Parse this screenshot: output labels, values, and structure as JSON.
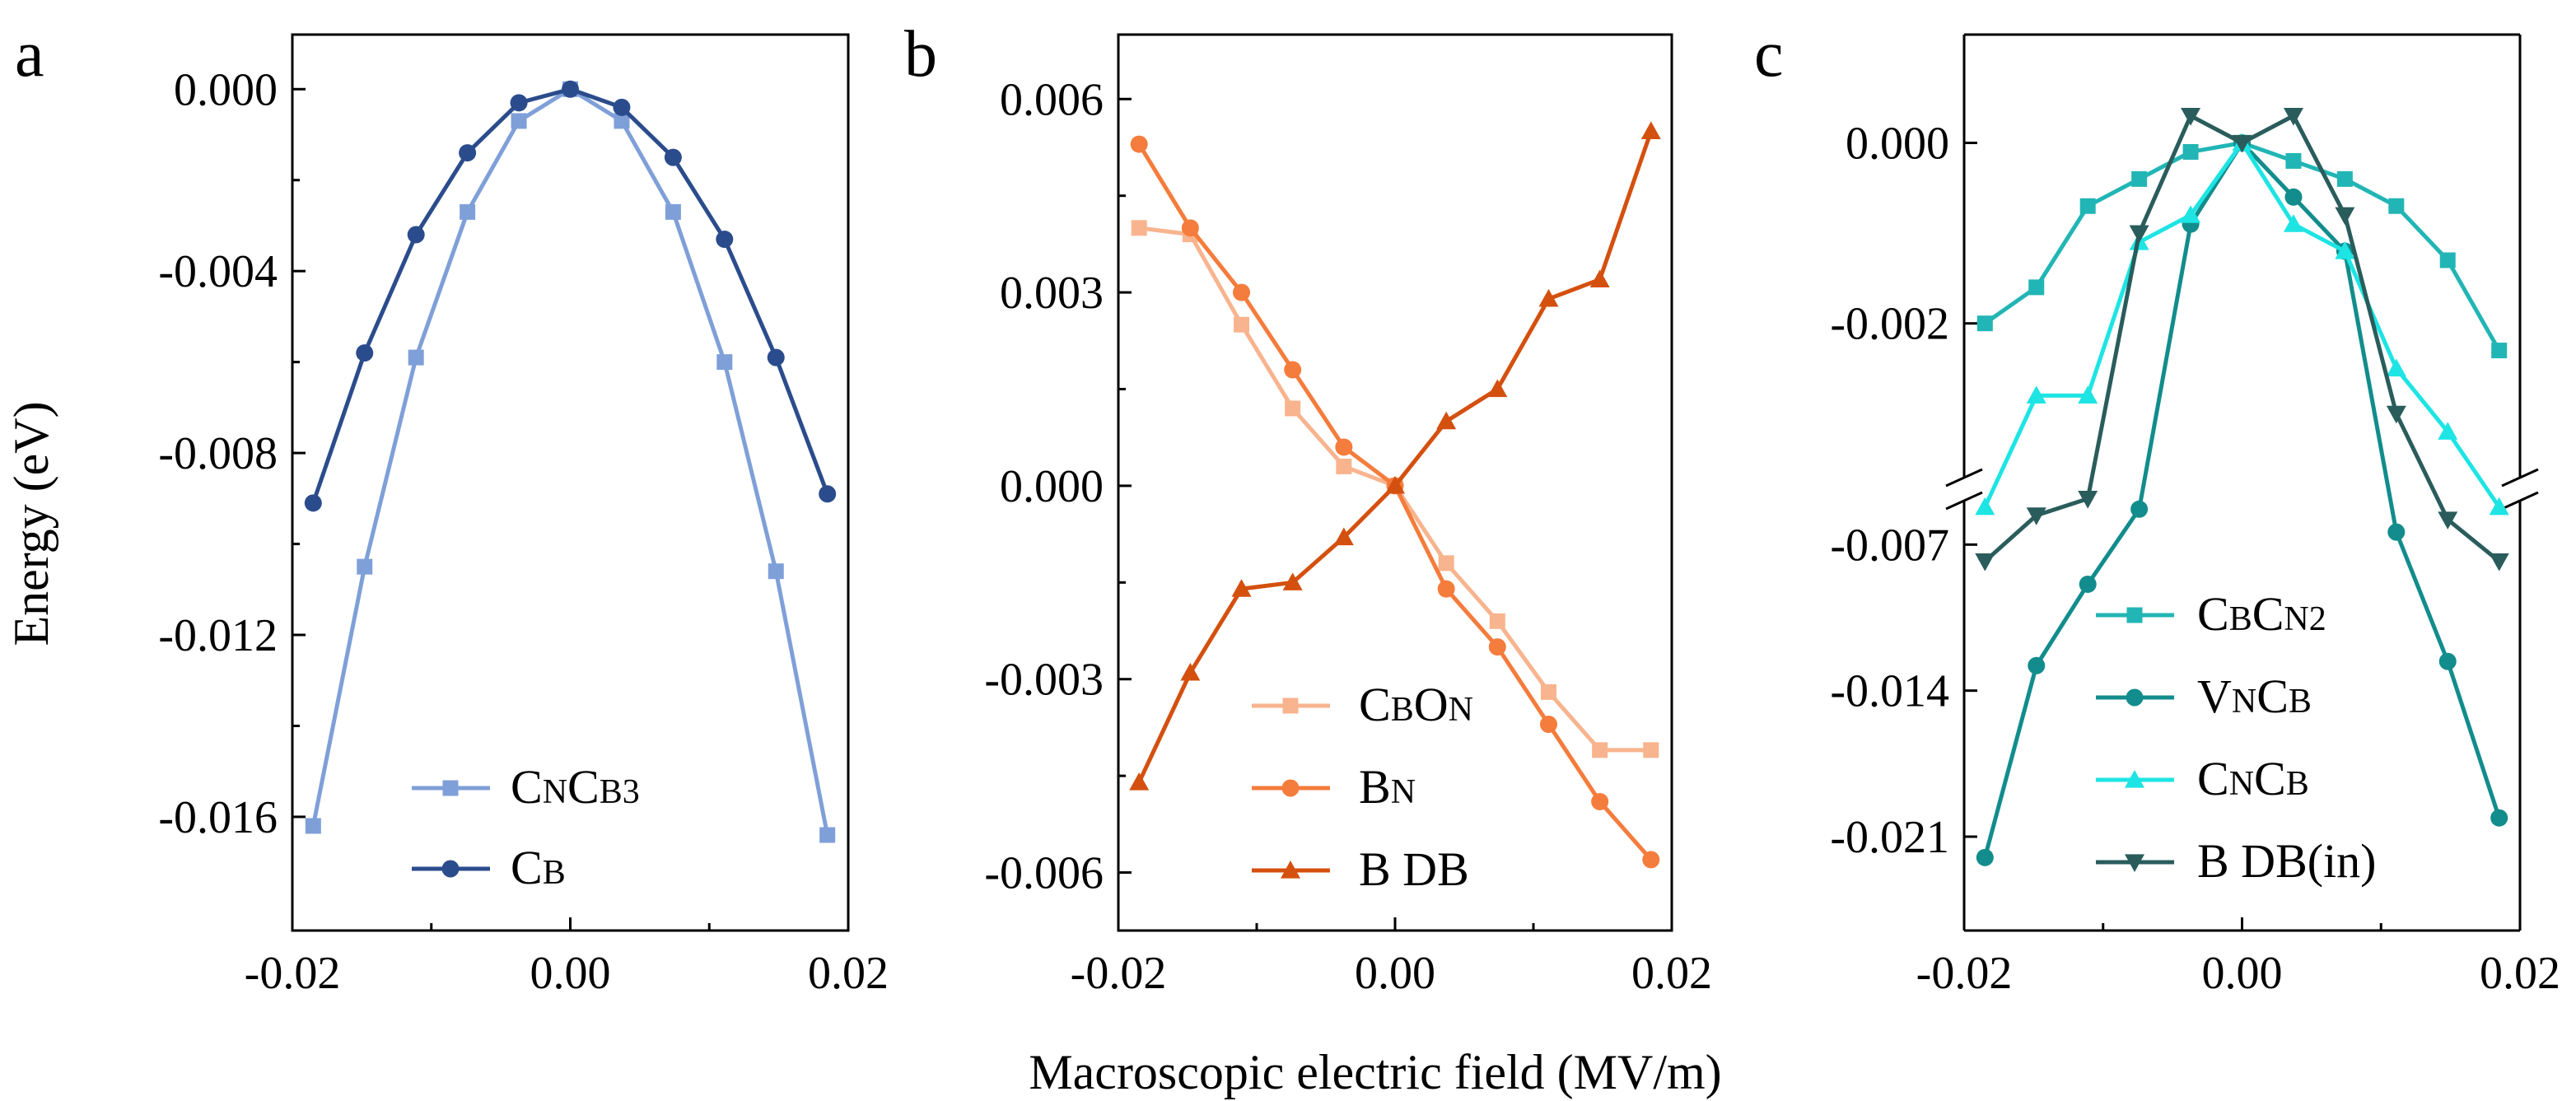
{
  "figure": {
    "xlabel": "Macroscopic electric field (MV/m)",
    "ylabel": "Energy (eV)"
  },
  "chart_data": [
    {
      "type": "line",
      "panel": "a",
      "xlim": [
        -0.02,
        0.02
      ],
      "ylim": [
        -0.0185,
        0.0012
      ],
      "x_ticks": [
        -0.02,
        0.0,
        0.02
      ],
      "x_tick_labels": [
        "-0.02",
        "0.00",
        "0.02"
      ],
      "y_ticks": [
        0.0,
        -0.004,
        -0.008,
        -0.012,
        -0.016
      ],
      "y_tick_labels": [
        "0.000",
        "-0.004",
        "-0.008",
        "-0.012",
        "-0.016"
      ],
      "legend_position": "bottom-center",
      "series": [
        {
          "name": "CNCB3",
          "label_parts": [
            [
              "C",
              ""
            ],
            [
              "N",
              "sub"
            ],
            [
              "C",
              ""
            ],
            [
              "B3",
              "sub"
            ]
          ],
          "color": "#7f9fd8",
          "marker": "square",
          "x": [
            -0.0185,
            -0.0148,
            -0.0111,
            -0.0074,
            -0.0037,
            0.0,
            0.0037,
            0.0074,
            0.0111,
            0.0148,
            0.0185
          ],
          "y": [
            -0.0162,
            -0.0105,
            -0.0059,
            -0.0027,
            -0.0007,
            0.0,
            -0.0007,
            -0.0027,
            -0.006,
            -0.0106,
            -0.0164
          ]
        },
        {
          "name": "CB",
          "label_parts": [
            [
              "C",
              ""
            ],
            [
              "B",
              "sub"
            ]
          ],
          "color": "#2b4c8c",
          "marker": "circle",
          "x": [
            -0.0185,
            -0.0148,
            -0.0111,
            -0.0074,
            -0.0037,
            0.0,
            0.0037,
            0.0074,
            0.0111,
            0.0148,
            0.0185
          ],
          "y": [
            -0.0091,
            -0.0058,
            -0.0032,
            -0.0014,
            -0.0003,
            0.0,
            -0.0004,
            -0.0015,
            -0.0033,
            -0.0059,
            -0.0089
          ]
        }
      ]
    },
    {
      "type": "line",
      "panel": "b",
      "xlim": [
        -0.02,
        0.02
      ],
      "ylim": [
        -0.0069,
        0.007
      ],
      "x_ticks": [
        -0.02,
        0.0,
        0.02
      ],
      "x_tick_labels": [
        "-0.02",
        "0.00",
        "0.02"
      ],
      "y_ticks": [
        0.006,
        0.003,
        0.0,
        -0.003,
        -0.006
      ],
      "y_tick_labels": [
        "0.006",
        "0.003",
        "0.000",
        "-0.003",
        "-0.006"
      ],
      "legend_position": "bottom-right",
      "series": [
        {
          "name": "CBON",
          "label_parts": [
            [
              "C",
              ""
            ],
            [
              "B",
              "sub"
            ],
            [
              "O",
              ""
            ],
            [
              "N",
              "sub"
            ]
          ],
          "color": "#f8b48e",
          "marker": "square",
          "x": [
            -0.0185,
            -0.0148,
            -0.0111,
            -0.0074,
            -0.0037,
            0.0,
            0.0037,
            0.0074,
            0.0111,
            0.0148,
            0.0185
          ],
          "y": [
            0.004,
            0.0039,
            0.0025,
            0.0012,
            0.0003,
            0.0,
            -0.0012,
            -0.0021,
            -0.0032,
            -0.0041,
            -0.0041
          ]
        },
        {
          "name": "BN",
          "label_parts": [
            [
              "B",
              ""
            ],
            [
              "N",
              "sub"
            ]
          ],
          "color": "#f47c3c",
          "marker": "circle",
          "x": [
            -0.0185,
            -0.0148,
            -0.0111,
            -0.0074,
            -0.0037,
            0.0,
            0.0037,
            0.0074,
            0.0111,
            0.0148,
            0.0185
          ],
          "y": [
            0.0053,
            0.004,
            0.003,
            0.0018,
            0.0006,
            0.0,
            -0.0016,
            -0.0025,
            -0.0037,
            -0.0049,
            -0.0058
          ]
        },
        {
          "name": "B DB",
          "label_parts": [
            [
              "B DB",
              ""
            ]
          ],
          "color": "#d4500f",
          "marker": "triangle-up",
          "x": [
            -0.0185,
            -0.0148,
            -0.0111,
            -0.0074,
            -0.0037,
            0.0,
            0.0037,
            0.0074,
            0.0111,
            0.0148,
            0.0185
          ],
          "y": [
            -0.0046,
            -0.0029,
            -0.0016,
            -0.0015,
            -0.0008,
            0.0,
            0.001,
            0.0015,
            0.0029,
            0.0032,
            0.0055
          ]
        }
      ]
    },
    {
      "type": "line",
      "panel": "c",
      "broken_axis": true,
      "xlim": [
        -0.02,
        0.02
      ],
      "upper_segment_ylim": [
        -0.0038,
        0.0012
      ],
      "lower_segment_ylim": [
        -0.0255,
        -0.0045
      ],
      "x_ticks": [
        -0.02,
        0.0,
        0.02
      ],
      "x_tick_labels": [
        "-0.02",
        "0.00",
        "0.02"
      ],
      "y_ticks": [
        0.0,
        -0.002,
        -0.007,
        -0.014,
        -0.021
      ],
      "y_tick_labels": [
        "0.000",
        "-0.002",
        "-0.007",
        "-0.014",
        "-0.021"
      ],
      "legend_position": "bottom-center",
      "series": [
        {
          "name": "CBCN2",
          "label_parts": [
            [
              "C",
              ""
            ],
            [
              "B",
              "sub"
            ],
            [
              "C",
              ""
            ],
            [
              "N2",
              "sub"
            ]
          ],
          "color": "#22b5b5",
          "marker": "square",
          "x": [
            -0.0185,
            -0.0148,
            -0.0111,
            -0.0074,
            -0.0037,
            0.0,
            0.0037,
            0.0074,
            0.0111,
            0.0148,
            0.0185
          ],
          "y": [
            -0.002,
            -0.0016,
            -0.0007,
            -0.0004,
            -0.0001,
            0.0,
            -0.0002,
            -0.0004,
            -0.0007,
            -0.0013,
            -0.0023
          ]
        },
        {
          "name": "VNCB",
          "label_parts": [
            [
              "V",
              ""
            ],
            [
              "N",
              "sub"
            ],
            [
              "C",
              ""
            ],
            [
              "B",
              "sub"
            ]
          ],
          "color": "#128c8c",
          "marker": "circle",
          "x": [
            -0.0185,
            -0.0148,
            -0.0111,
            -0.0074,
            -0.0037,
            0.0,
            0.0037,
            0.0074,
            0.0111,
            0.0148,
            0.0185
          ],
          "y": [
            -0.022,
            -0.0128,
            -0.0089,
            -0.0053,
            -0.0009,
            0.0,
            -0.0006,
            -0.0012,
            -0.0064,
            -0.0126,
            -0.0201
          ]
        },
        {
          "name": "CNCB",
          "label_parts": [
            [
              "C",
              ""
            ],
            [
              "N",
              "sub"
            ],
            [
              "C",
              ""
            ],
            [
              "B",
              "sub"
            ]
          ],
          "color": "#1ee4e4",
          "marker": "triangle-up",
          "x": [
            -0.0185,
            -0.0148,
            -0.0111,
            -0.0074,
            -0.0037,
            0.0,
            0.0037,
            0.0074,
            0.0111,
            0.0148,
            0.0185
          ],
          "y": [
            -0.0052,
            -0.0028,
            -0.0028,
            -0.0011,
            -0.0008,
            0.0,
            -0.0009,
            -0.0012,
            -0.0025,
            -0.0032,
            -0.0052
          ]
        },
        {
          "name": "B DB(in)",
          "label_parts": [
            [
              "B DB(in)",
              ""
            ]
          ],
          "color": "#2a5c5c",
          "marker": "triangle-down",
          "x": [
            -0.0185,
            -0.0148,
            -0.0111,
            -0.0074,
            -0.0037,
            0.0,
            0.0037,
            0.0074,
            0.0111,
            0.0148,
            0.0185
          ],
          "y": [
            -0.0078,
            -0.0056,
            -0.0048,
            -0.001,
            0.0003,
            0.0,
            0.0003,
            -0.0008,
            -0.003,
            -0.0058,
            -0.0078
          ]
        }
      ]
    }
  ]
}
